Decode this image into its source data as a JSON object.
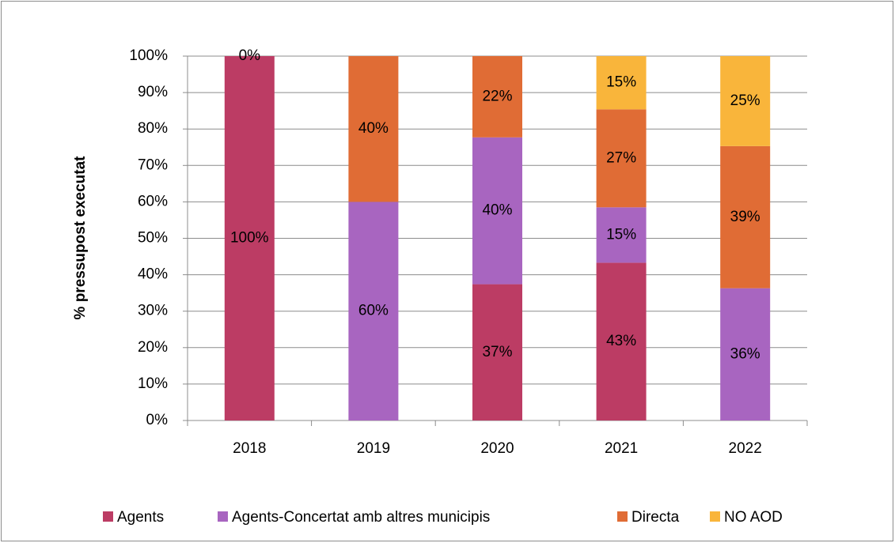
{
  "chart_data": {
    "type": "stacked_bar",
    "y_axis_label": "% pressupost executat",
    "categories": [
      "2018",
      "2019",
      "2020",
      "2021",
      "2022"
    ],
    "series": [
      {
        "name": "Agents",
        "color": "#bc3c64",
        "values": [
          100,
          0,
          37.4,
          43.3,
          0
        ],
        "value_labels": [
          "100%",
          null,
          "37%",
          "43%",
          null
        ]
      },
      {
        "name": "Agents-Concertat amb altres municipis",
        "color": "#a865c0",
        "values": [
          0,
          60,
          40.3,
          15.2,
          36.3
        ],
        "value_labels": [
          null,
          "60%",
          "40%",
          "15%",
          "36%"
        ]
      },
      {
        "name": "Directa",
        "color": "#e06c35",
        "values": [
          0,
          40,
          22.3,
          26.9,
          39.0
        ],
        "value_labels": [
          "0%",
          "40%",
          "22%",
          "27%",
          "39%"
        ]
      },
      {
        "name": "NO AOD",
        "color": "#f9b53b",
        "values": [
          0,
          0,
          0,
          14.6,
          24.7
        ],
        "value_labels": [
          null,
          null,
          null,
          "15%",
          "25%"
        ]
      }
    ],
    "ylim": [
      0,
      100
    ],
    "yticks": [
      {
        "value": 0,
        "label": "0%"
      },
      {
        "value": 10,
        "label": "10%"
      },
      {
        "value": 20,
        "label": "20%"
      },
      {
        "value": 30,
        "label": "30%"
      },
      {
        "value": 40,
        "label": "40%"
      },
      {
        "value": 50,
        "label": "50%"
      },
      {
        "value": 60,
        "label": "60%"
      },
      {
        "value": 70,
        "label": "70%"
      },
      {
        "value": 80,
        "label": "80%"
      },
      {
        "value": 90,
        "label": "90%"
      },
      {
        "value": 100,
        "label": "100%"
      }
    ],
    "grid": true,
    "legend": "bottom"
  }
}
